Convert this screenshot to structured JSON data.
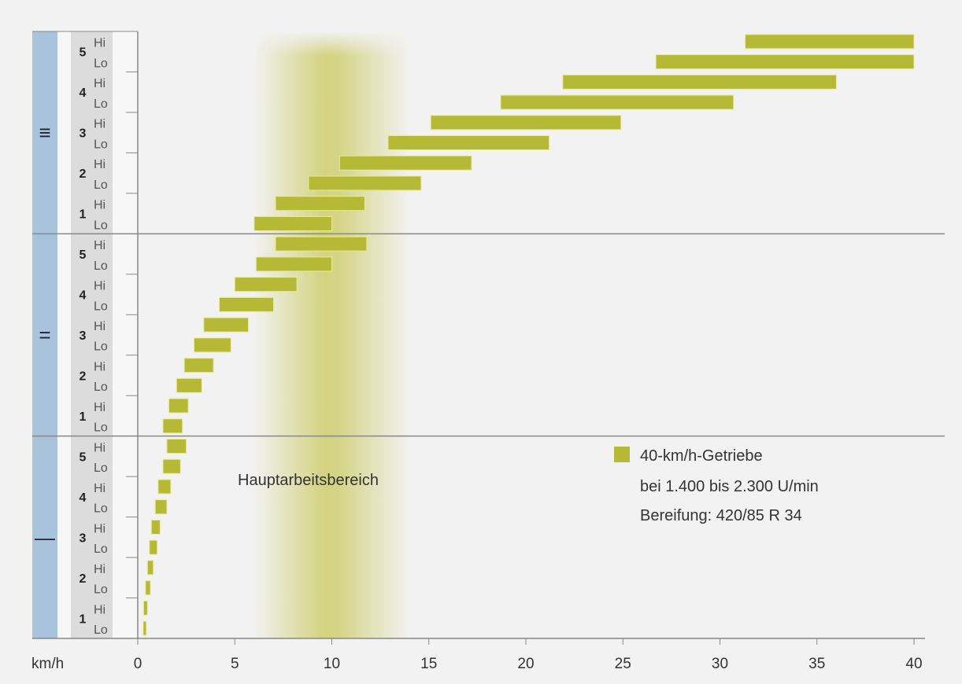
{
  "chart_data": {
    "type": "bar",
    "subtype": "floating-horizontal-range",
    "xlabel": "km/h",
    "xlim": [
      0,
      40
    ],
    "xticks": [
      "0",
      "5",
      "10",
      "15",
      "20",
      "25",
      "30",
      "35",
      "40"
    ],
    "row_labels": {
      "hi": "Hi",
      "lo": "Lo"
    },
    "groups": [
      {
        "name": "III",
        "symbol": "≡",
        "gears": [
          {
            "gear": "5",
            "hi": [
              31.3,
              40.0
            ],
            "lo": [
              26.7,
              40.0
            ]
          },
          {
            "gear": "4",
            "hi": [
              21.9,
              36.0
            ],
            "lo": [
              18.7,
              30.7
            ]
          },
          {
            "gear": "3",
            "hi": [
              15.1,
              24.9
            ],
            "lo": [
              12.9,
              21.2
            ]
          },
          {
            "gear": "2",
            "hi": [
              10.4,
              17.2
            ],
            "lo": [
              8.8,
              14.6
            ]
          },
          {
            "gear": "1",
            "hi": [
              7.1,
              11.7
            ],
            "lo": [
              6.0,
              10.0
            ]
          }
        ]
      },
      {
        "name": "II",
        "symbol": "=",
        "gears": [
          {
            "gear": "5",
            "hi": [
              7.1,
              11.8
            ],
            "lo": [
              6.1,
              10.0
            ]
          },
          {
            "gear": "4",
            "hi": [
              5.0,
              8.2
            ],
            "lo": [
              4.2,
              7.0
            ]
          },
          {
            "gear": "3",
            "hi": [
              3.4,
              5.7
            ],
            "lo": [
              2.9,
              4.8
            ]
          },
          {
            "gear": "2",
            "hi": [
              2.4,
              3.9
            ],
            "lo": [
              2.0,
              3.3
            ]
          },
          {
            "gear": "1",
            "hi": [
              1.6,
              2.6
            ],
            "lo": [
              1.3,
              2.3
            ]
          }
        ]
      },
      {
        "name": "I",
        "symbol": "—",
        "gears": [
          {
            "gear": "5",
            "hi": [
              1.5,
              2.5
            ],
            "lo": [
              1.3,
              2.2
            ]
          },
          {
            "gear": "4",
            "hi": [
              1.05,
              1.7
            ],
            "lo": [
              0.9,
              1.5
            ]
          },
          {
            "gear": "3",
            "hi": [
              0.7,
              1.15
            ],
            "lo": [
              0.6,
              1.0
            ]
          },
          {
            "gear": "2",
            "hi": [
              0.5,
              0.8
            ],
            "lo": [
              0.4,
              0.65
            ]
          },
          {
            "gear": "1",
            "hi": [
              0.3,
              0.5
            ],
            "lo": [
              0.28,
              0.44
            ]
          }
        ]
      }
    ],
    "band": {
      "label": "Hauptarbeitsbereich",
      "range": [
        6,
        14
      ],
      "peak": 10
    },
    "legend": {
      "position": "bottom-right",
      "lines": [
        "40-km/h-Getriebe",
        "bei 1.400 bis 2.300 U/min",
        "Bereifung: 420/85 R 34"
      ]
    },
    "colors": {
      "bar": "#b5b935",
      "band": "#c9c85a",
      "group_col": "#a9c3dc",
      "gear_col": "#dcdcdc"
    }
  }
}
